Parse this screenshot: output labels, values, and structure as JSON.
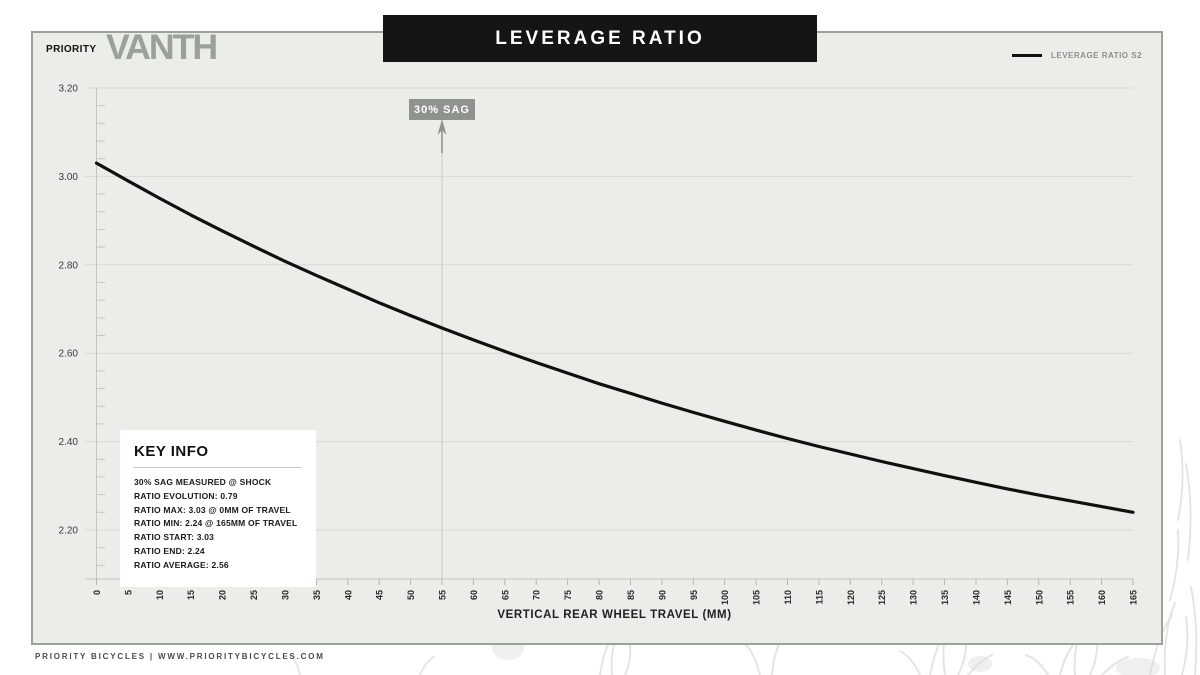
{
  "page": {
    "banner_title": "LEVERAGE RATIO",
    "brand": "PRIORITY",
    "model": "VANTH",
    "footer": "PRIORITY BICYCLES | WWW.PRIORITYBICYCLES.COM"
  },
  "legend": {
    "label": "LEVERAGE RATIO S2",
    "line_color": "#111111"
  },
  "sag_annotation": {
    "label": "30% SAG",
    "x_mm": 55,
    "badge_color": "#8e948d"
  },
  "key_info": {
    "title": "KEY INFO",
    "lines": [
      "30% SAG MEASURED @ SHOCK",
      "RATIO EVOLUTION: 0.79",
      "RATIO MAX: 3.03 @ 0MM OF TRAVEL",
      "RATIO MIN: 2.24 @ 165MM OF TRAVEL",
      "RATIO START: 3.03",
      "RATIO END: 2.24",
      "RATIO AVERAGE: 2.56"
    ]
  },
  "chart_data": {
    "type": "line",
    "title": "LEVERAGE RATIO",
    "xlabel": "VERTICAL REAR WHEEL TRAVEL (MM)",
    "ylabel": "",
    "xlim": [
      0,
      165
    ],
    "ylim": [
      2.09,
      3.2
    ],
    "x_ticks": [
      0,
      5,
      10,
      15,
      20,
      25,
      30,
      35,
      40,
      45,
      50,
      55,
      60,
      65,
      70,
      75,
      80,
      85,
      90,
      95,
      100,
      105,
      110,
      115,
      120,
      125,
      130,
      135,
      140,
      145,
      150,
      155,
      160,
      165
    ],
    "y_ticks": [
      "3.20",
      "3.00",
      "2.80",
      "2.60",
      "2.40",
      "2.20"
    ],
    "y_minor_step": 0.04,
    "grid": "horizontal-major-only",
    "legend_position": "top-right",
    "annotation": {
      "label": "30% SAG",
      "x": 55
    },
    "series": [
      {
        "name": "LEVERAGE RATIO S2",
        "x": [
          0,
          5,
          10,
          15,
          20,
          25,
          30,
          35,
          40,
          45,
          50,
          55,
          60,
          65,
          70,
          75,
          80,
          85,
          90,
          95,
          100,
          105,
          110,
          115,
          120,
          125,
          130,
          135,
          140,
          145,
          150,
          155,
          160,
          165
        ],
        "values": [
          3.03,
          2.99,
          2.951,
          2.913,
          2.877,
          2.842,
          2.808,
          2.776,
          2.745,
          2.714,
          2.685,
          2.657,
          2.63,
          2.604,
          2.579,
          2.555,
          2.531,
          2.509,
          2.487,
          2.466,
          2.446,
          2.426,
          2.407,
          2.389,
          2.372,
          2.355,
          2.339,
          2.323,
          2.308,
          2.293,
          2.279,
          2.266,
          2.253,
          2.24
        ]
      }
    ],
    "colors": {
      "line": "#101010",
      "grid": "#d5d9d3",
      "axis": "#c2c7c1",
      "tick": "#b2b7b1",
      "sag_line": "#c6cbc5",
      "sag_marker": "#8e948d",
      "y_label": "#3a3a3a",
      "x_label": "#2a2a2a"
    }
  }
}
